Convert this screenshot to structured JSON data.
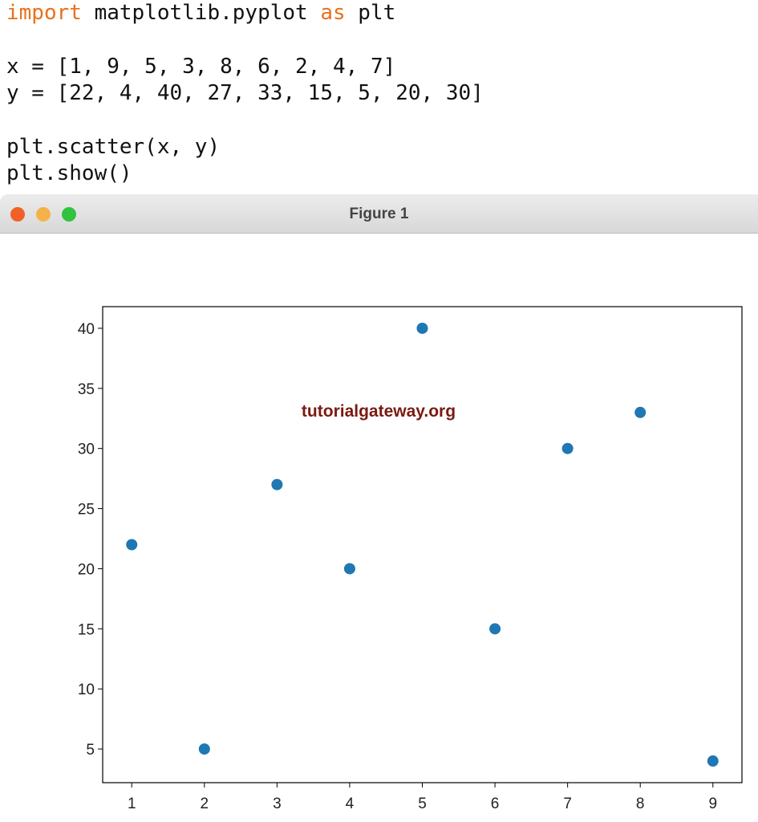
{
  "code": {
    "blocks": [
      [
        [
          {
            "text": "import",
            "color": "#e8711b"
          },
          {
            "text": " matplotlib.pyplot "
          },
          {
            "text": "as",
            "color": "#e8711b"
          },
          {
            "text": " plt"
          }
        ]
      ],
      [
        [
          {
            "text": "x = [1, 9, 5, 3, 8, 6, 2, 4, 7]"
          }
        ],
        [
          {
            "text": "y = [22, 4, 40, 27, 33, 15, 5, 20, 30]"
          }
        ]
      ],
      [
        [
          {
            "text": "plt.scatter(x, y)"
          }
        ],
        [
          {
            "text": "plt.show()"
          }
        ]
      ]
    ]
  },
  "window": {
    "title": "Figure 1"
  },
  "chart_data": {
    "type": "scatter",
    "watermark": "tutorialgateway.org",
    "x": [
      1,
      9,
      5,
      3,
      8,
      6,
      2,
      4,
      7
    ],
    "series": [
      {
        "color": "#1f77b4",
        "values": [
          22,
          4,
          40,
          27,
          33,
          15,
          5,
          20,
          30
        ]
      }
    ],
    "xlim": [
      0.6,
      9.4
    ],
    "xticks": [
      1,
      2,
      3,
      4,
      5,
      6,
      7,
      8,
      9
    ],
    "ylim": [
      2.2,
      41.8
    ],
    "yticks": [
      5,
      10,
      15,
      20,
      25,
      30,
      35,
      40
    ]
  }
}
